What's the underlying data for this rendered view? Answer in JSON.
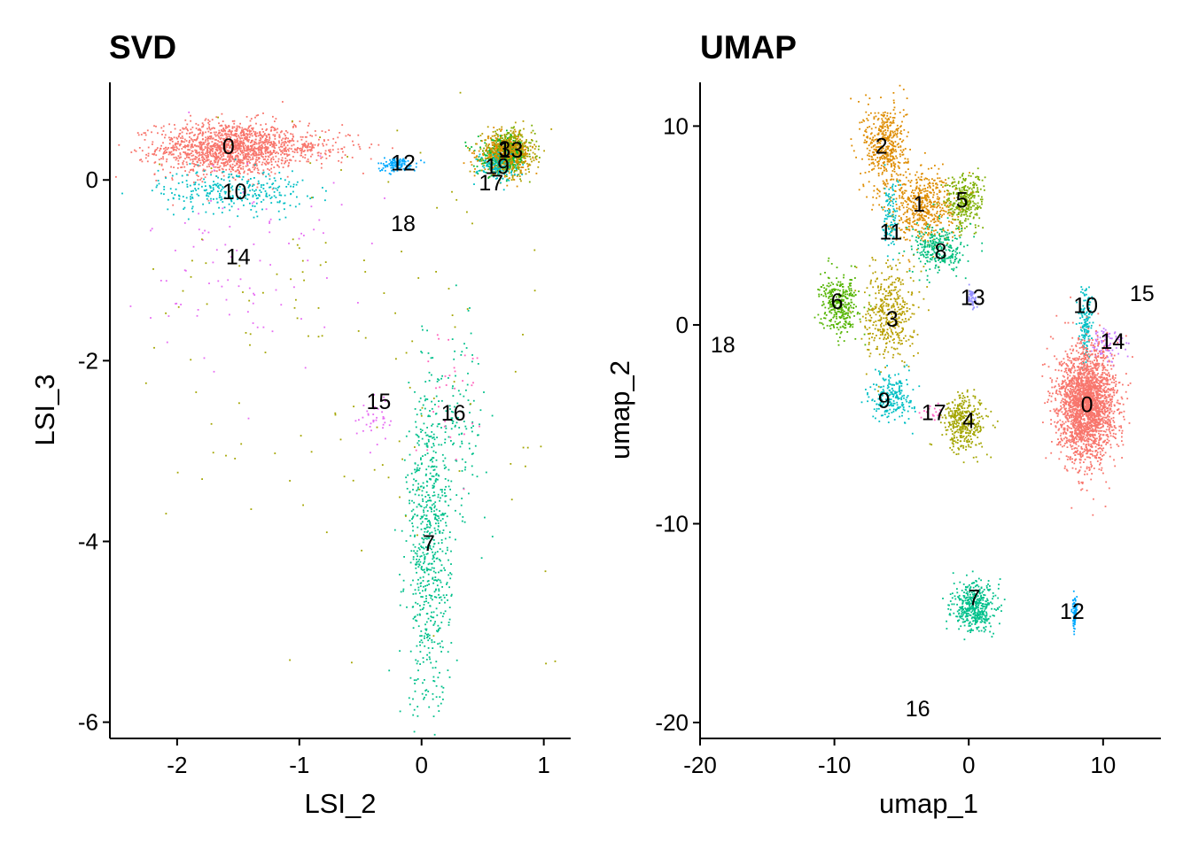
{
  "chart_data": [
    {
      "type": "scatter",
      "title": "SVD",
      "xlabel": "LSI_2",
      "ylabel": "LSI_3",
      "xlim": [
        -2.55,
        1.22
      ],
      "ylim": [
        -6.18,
        1.08
      ],
      "xticks": [
        -2,
        -1,
        0,
        1
      ],
      "xtick_labels": [
        "-2",
        "-1",
        "0",
        "1"
      ],
      "yticks": [
        -6,
        -4,
        -2,
        0
      ],
      "ytick_labels": [
        "-6",
        "-4",
        "-2",
        "0"
      ],
      "grid": false,
      "legend": "none",
      "cluster_labels": [
        {
          "label": "0",
          "x": -1.58,
          "y": 0.35
        },
        {
          "label": "10",
          "x": -1.53,
          "y": -0.15
        },
        {
          "label": "12",
          "x": -0.15,
          "y": 0.17
        },
        {
          "label": "18",
          "x": -0.15,
          "y": -0.5
        },
        {
          "label": "14",
          "x": -1.5,
          "y": -0.87
        },
        {
          "label": "15",
          "x": -0.35,
          "y": -2.47
        },
        {
          "label": "16",
          "x": 0.26,
          "y": -2.6
        },
        {
          "label": "7",
          "x": 0.06,
          "y": -4.04
        },
        {
          "label": "3",
          "x": 0.68,
          "y": 0.32
        },
        {
          "label": "13",
          "x": 0.73,
          "y": 0.31
        },
        {
          "label": "19",
          "x": 0.62,
          "y": 0.13
        },
        {
          "label": "17",
          "x": 0.57,
          "y": -0.05
        }
      ],
      "clusters": [
        {
          "id": "0",
          "color": "#F8766D",
          "cx": -1.6,
          "cy": 0.35,
          "sx": 0.28,
          "sy": 0.15,
          "n": 1300
        },
        {
          "id": "0b",
          "color": "#F8766D",
          "cx": -1.1,
          "cy": 0.36,
          "sx": 0.3,
          "sy": 0.1,
          "n": 300
        },
        {
          "id": "10",
          "color": "#00BFC4",
          "cx": -1.55,
          "cy": -0.12,
          "sx": 0.3,
          "sy": 0.12,
          "n": 300
        },
        {
          "id": "14",
          "color": "#E76BF3",
          "cx": -1.45,
          "cy": -0.9,
          "sx": 0.4,
          "sy": 0.6,
          "n": 90
        },
        {
          "id": "12",
          "color": "#00A9FF",
          "cx": -0.2,
          "cy": 0.17,
          "sx": 0.08,
          "sy": 0.04,
          "n": 120
        },
        {
          "id": "top-right-a",
          "color": "#B79F00",
          "cx": 0.7,
          "cy": 0.3,
          "sx": 0.1,
          "sy": 0.12,
          "n": 500
        },
        {
          "id": "top-right-b",
          "color": "#7CAE00",
          "cx": 0.72,
          "cy": 0.32,
          "sx": 0.1,
          "sy": 0.1,
          "n": 300
        },
        {
          "id": "top-right-c",
          "color": "#00BA38",
          "cx": 0.66,
          "cy": 0.25,
          "sx": 0.1,
          "sy": 0.1,
          "n": 200
        },
        {
          "id": "top-right-d",
          "color": "#DE8C00",
          "cx": 0.68,
          "cy": 0.28,
          "sx": 0.1,
          "sy": 0.1,
          "n": 300
        },
        {
          "id": "top-right-e",
          "color": "#00BFC4",
          "cx": 0.62,
          "cy": 0.15,
          "sx": 0.08,
          "sy": 0.08,
          "n": 120
        },
        {
          "id": "7",
          "color": "#00C08B",
          "cx": 0.06,
          "cy": -4.1,
          "sx": 0.09,
          "sy": 0.9,
          "n": 700
        },
        {
          "id": "7b",
          "color": "#00C08B",
          "cx": 0.3,
          "cy": -2.7,
          "sx": 0.12,
          "sy": 0.5,
          "n": 120
        },
        {
          "id": "15",
          "color": "#E76BF3",
          "cx": -0.35,
          "cy": -2.6,
          "sx": 0.08,
          "sy": 0.15,
          "n": 40
        },
        {
          "id": "16",
          "color": "#FF62BC",
          "cx": 0.25,
          "cy": -2.3,
          "sx": 0.15,
          "sy": 0.4,
          "n": 30
        },
        {
          "id": "scatter",
          "color": "#A3A500",
          "cx": -0.7,
          "cy": -1.8,
          "sx": 0.9,
          "sy": 1.3,
          "n": 140
        }
      ]
    },
    {
      "type": "scatter",
      "title": "UMAP",
      "xlabel": "umap_1",
      "ylabel": "umap_2",
      "xlim": [
        -20,
        14.3
      ],
      "ylim": [
        -20.8,
        12.2
      ],
      "xticks": [
        -20,
        -10,
        0,
        10
      ],
      "xtick_labels": [
        "-20",
        "-10",
        "0",
        "10"
      ],
      "yticks": [
        -20,
        -10,
        0,
        10
      ],
      "ytick_labels": [
        "-20",
        "-10",
        "0",
        "10"
      ],
      "grid": false,
      "legend": "none",
      "cluster_labels": [
        {
          "label": "2",
          "x": -6.5,
          "y": 8.9
        },
        {
          "label": "1",
          "x": -3.7,
          "y": 6.0
        },
        {
          "label": "5",
          "x": -0.5,
          "y": 6.2
        },
        {
          "label": "11",
          "x": -5.8,
          "y": 4.6
        },
        {
          "label": "8",
          "x": -2.1,
          "y": 3.6
        },
        {
          "label": "13",
          "x": 0.3,
          "y": 1.3
        },
        {
          "label": "6",
          "x": -9.8,
          "y": 1.1
        },
        {
          "label": "3",
          "x": -5.7,
          "y": 0.2
        },
        {
          "label": "10",
          "x": 8.7,
          "y": 0.9
        },
        {
          "label": "15",
          "x": 12.9,
          "y": 1.5
        },
        {
          "label": "14",
          "x": 10.7,
          "y": -0.9
        },
        {
          "label": "18",
          "x": -18.3,
          "y": -1.1
        },
        {
          "label": "9",
          "x": -6.3,
          "y": -3.9
        },
        {
          "label": "17",
          "x": -2.6,
          "y": -4.5
        },
        {
          "label": "4",
          "x": 0.0,
          "y": -4.9
        },
        {
          "label": "0",
          "x": 8.8,
          "y": -4.1
        },
        {
          "label": "7",
          "x": 0.4,
          "y": -13.8
        },
        {
          "label": "12",
          "x": 7.7,
          "y": -14.5
        },
        {
          "label": "16",
          "x": -3.8,
          "y": -19.4
        }
      ],
      "clusters": [
        {
          "id": "2",
          "color": "#DE8C00",
          "cx": -6.2,
          "cy": 9.0,
          "sx": 0.8,
          "sy": 1.1,
          "n": 450
        },
        {
          "id": "1",
          "color": "#DE8C00",
          "cx": -3.5,
          "cy": 6.0,
          "sx": 1.3,
          "sy": 0.9,
          "n": 550
        },
        {
          "id": "5",
          "color": "#7CAE00",
          "cx": -0.3,
          "cy": 6.2,
          "sx": 0.7,
          "sy": 0.7,
          "n": 300
        },
        {
          "id": "11",
          "color": "#00BFC4",
          "cx": -5.8,
          "cy": 5.5,
          "sx": 0.3,
          "sy": 1.0,
          "n": 110
        },
        {
          "id": "8",
          "color": "#00BF7D",
          "cx": -2.2,
          "cy": 3.8,
          "sx": 1.0,
          "sy": 0.6,
          "n": 280
        },
        {
          "id": "13",
          "color": "#9590FF",
          "cx": 0.2,
          "cy": 1.3,
          "sx": 0.2,
          "sy": 0.25,
          "n": 50
        },
        {
          "id": "6",
          "color": "#53B400",
          "cx": -9.6,
          "cy": 1.0,
          "sx": 0.7,
          "sy": 0.7,
          "n": 340
        },
        {
          "id": "3",
          "color": "#B79F00",
          "cx": -5.9,
          "cy": 0.6,
          "sx": 0.9,
          "sy": 1.2,
          "n": 420
        },
        {
          "id": "9",
          "color": "#00BFC4",
          "cx": -5.7,
          "cy": -3.6,
          "sx": 0.8,
          "sy": 0.6,
          "n": 220
        },
        {
          "id": "17",
          "color": "#FF61C3",
          "cx": -2.6,
          "cy": -4.5,
          "sx": 0.4,
          "sy": 0.2,
          "n": 20
        },
        {
          "id": "4",
          "color": "#A3A500",
          "cx": -0.3,
          "cy": -4.9,
          "sx": 0.8,
          "sy": 0.7,
          "n": 380
        },
        {
          "id": "10",
          "color": "#00BFC4",
          "cx": 8.7,
          "cy": 0.0,
          "sx": 0.25,
          "sy": 1.0,
          "n": 150
        },
        {
          "id": "14",
          "color": "#C77CFF",
          "cx": 10.3,
          "cy": -0.9,
          "sx": 0.6,
          "sy": 0.4,
          "n": 90
        },
        {
          "id": "0",
          "color": "#F8766D",
          "cx": 8.8,
          "cy": -4.0,
          "sx": 1.05,
          "sy": 1.4,
          "n": 2400
        },
        {
          "id": "7",
          "color": "#00C08B",
          "cx": 0.4,
          "cy": -14.2,
          "sx": 0.8,
          "sy": 0.6,
          "n": 450
        },
        {
          "id": "12",
          "color": "#00A9FF",
          "cx": 7.9,
          "cy": -14.5,
          "sx": 0.1,
          "sy": 0.4,
          "n": 80
        }
      ]
    }
  ]
}
